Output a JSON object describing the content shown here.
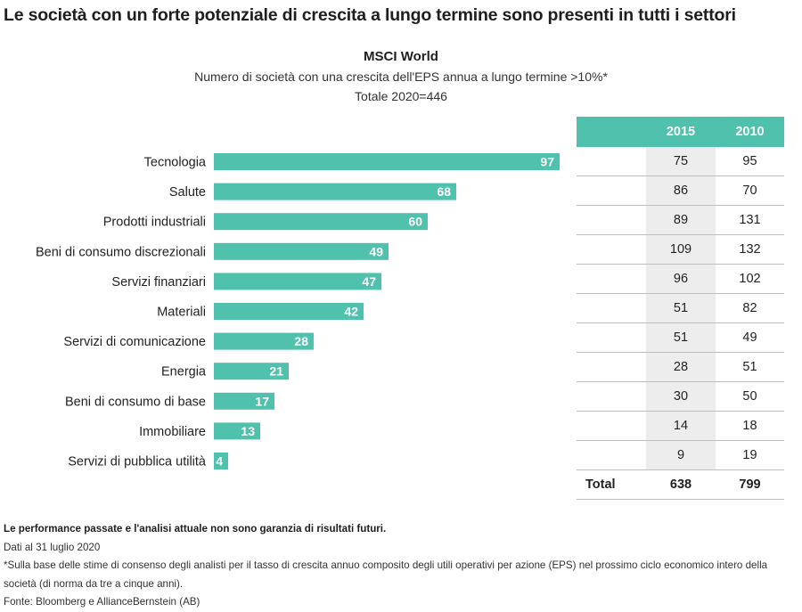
{
  "headline": "Le società con un forte potenziale di crescita a lungo termine sono presenti in tutti i settori",
  "chart_data": {
    "type": "bar",
    "orientation": "horizontal",
    "title": "MSCI World",
    "subtitle": "Numero di società con una crescita dell'EPS annua a lungo termine >10%*",
    "total_label": "Totale 2020=446",
    "categories": [
      "Tecnologia",
      "Salute",
      "Prodotti industriali",
      "Beni di consumo discrezionali",
      "Servizi finanziari",
      "Materiali",
      "Servizi di comunicazione",
      "Energia",
      "Beni di consumo di base",
      "Immobiliare",
      "Servizi di pubblica utilità"
    ],
    "values": [
      97,
      68,
      60,
      49,
      47,
      42,
      28,
      21,
      17,
      13,
      4
    ],
    "bar_color": "#4fc1ad",
    "xlim": [
      0,
      100
    ]
  },
  "table": {
    "headers": [
      "",
      "2015",
      "2010"
    ],
    "rows": [
      [
        "",
        "75",
        "95"
      ],
      [
        "",
        "86",
        "70"
      ],
      [
        "",
        "89",
        "131"
      ],
      [
        "",
        "109",
        "132"
      ],
      [
        "",
        "96",
        "102"
      ],
      [
        "",
        "51",
        "82"
      ],
      [
        "",
        "51",
        "49"
      ],
      [
        "",
        "28",
        "51"
      ],
      [
        "",
        "30",
        "50"
      ],
      [
        "",
        "14",
        "18"
      ],
      [
        "",
        "9",
        "19"
      ]
    ],
    "total": [
      "Total",
      "638",
      "799"
    ],
    "header_color": "#4fc1ad"
  },
  "notes": {
    "disclaimer": "Le performance passate e l'analisi attuale non sono garanzia di risultati futuri.",
    "date": "Dati al 31 luglio 2020",
    "footnote": "*Sulla base delle stime di consenso degli analisti per il tasso di crescita annuo composito degli utili operativi per azione (EPS) nel prossimo ciclo economico intero della società (di norma da tre a cinque anni).",
    "source": "Fonte: Bloomberg e AllianceBernstein (AB)"
  }
}
